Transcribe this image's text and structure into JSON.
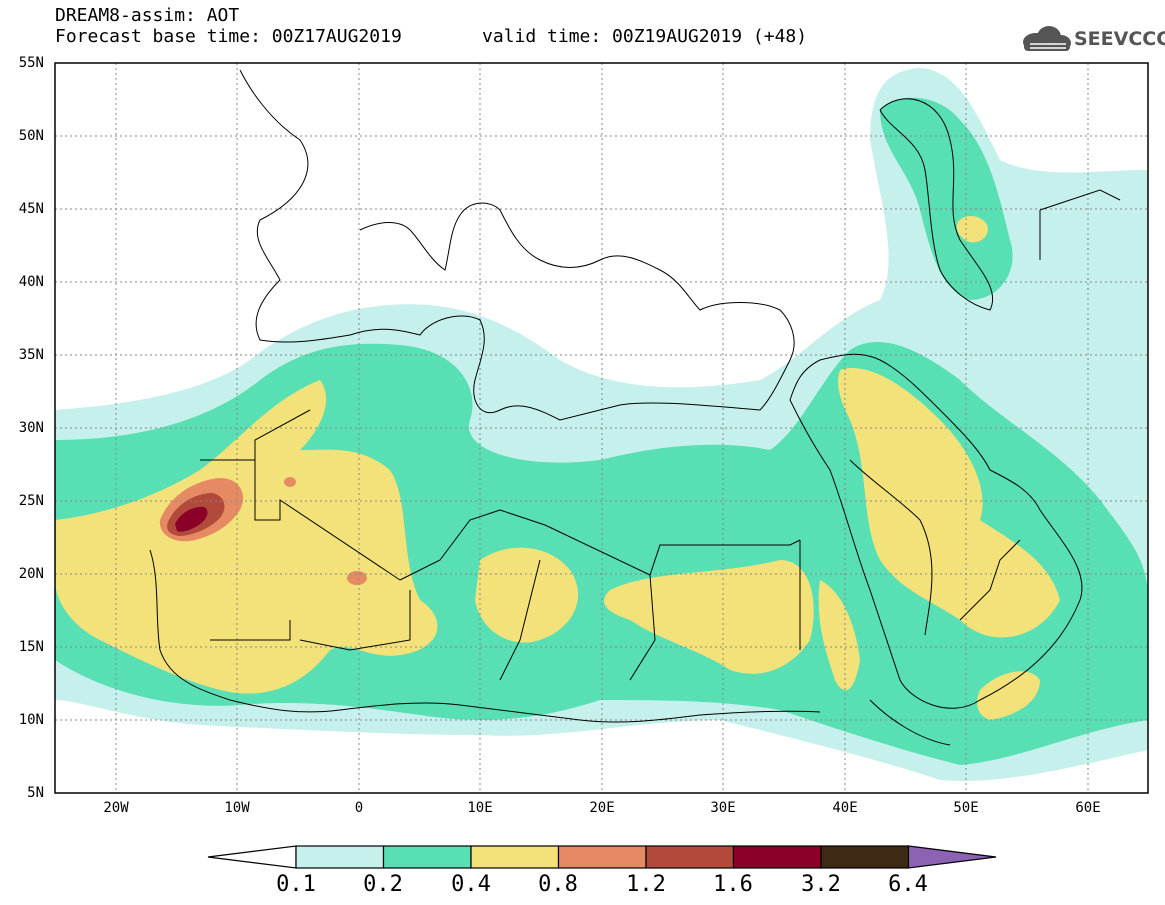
{
  "header": {
    "title": "DREAM8-assim: AOT",
    "base_time": "Forecast base time: 00Z17AUG2019",
    "valid_time": "valid time: 00Z19AUG2019 (+48)",
    "logo_text": "SEEVCCC",
    "logo_icon": "cloud-icon"
  },
  "map": {
    "latitude_labels": [
      "55N",
      "50N",
      "45N",
      "40N",
      "35N",
      "30N",
      "25N",
      "20N",
      "15N",
      "10N",
      "5N"
    ],
    "longitude_labels": [
      "20W",
      "10W",
      "0",
      "10E",
      "20E",
      "30E",
      "40E",
      "50E",
      "60E"
    ]
  },
  "colorbar": {
    "labels": [
      "0.1",
      "0.2",
      "0.4",
      "0.8",
      "1.2",
      "1.6",
      "3.2",
      "6.4"
    ],
    "colors": [
      "#ffffff",
      "#c6f0ec",
      "#58dfb3",
      "#f3e279",
      "#e68a64",
      "#b24a3c",
      "#8b0028",
      "#3d2914",
      "#8c62b2"
    ]
  },
  "colors": {
    "low": "#c6f0ec",
    "moderate": "#58dfb3",
    "high": "#f3e279",
    "very_high": "#e68a64",
    "extreme": "#b24a3c",
    "peak": "#8b0028"
  }
}
